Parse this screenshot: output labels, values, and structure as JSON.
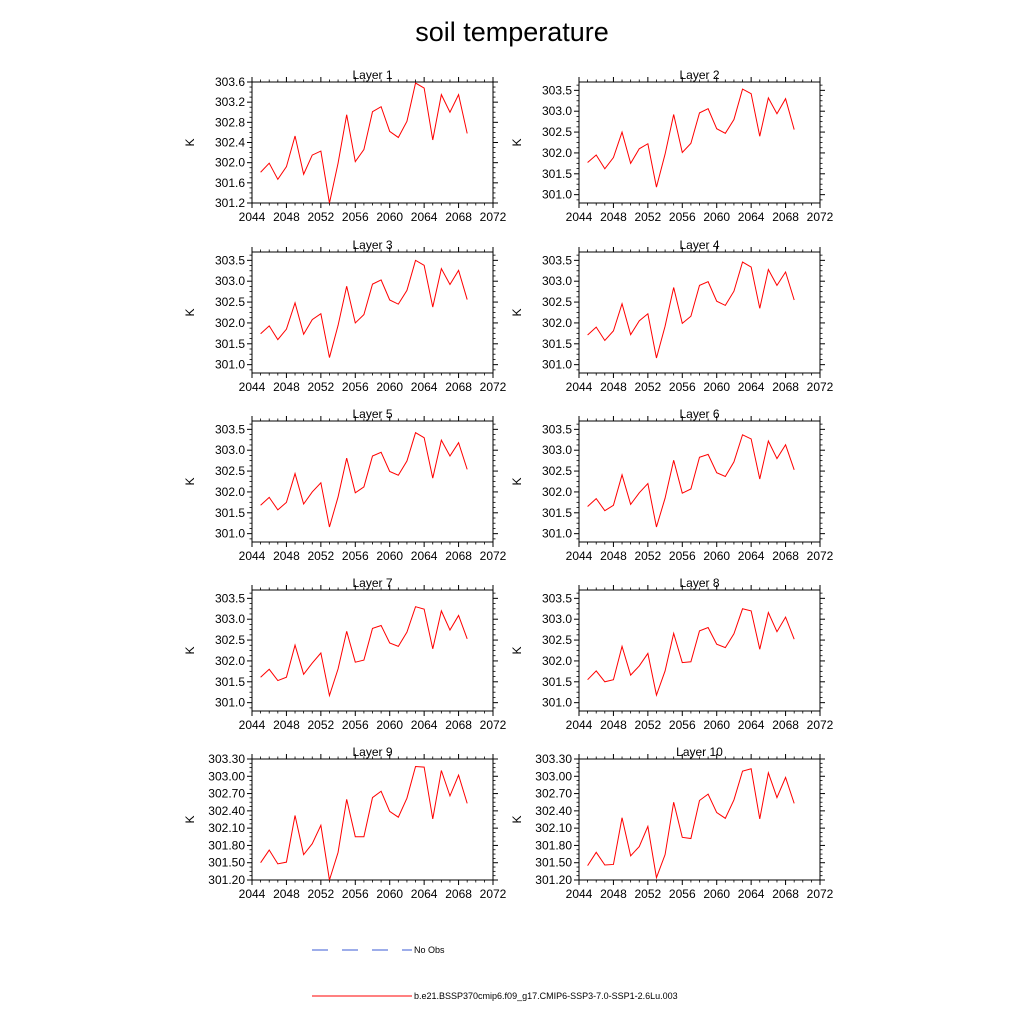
{
  "figure": {
    "title": "soil temperature"
  },
  "legend": {
    "items": [
      {
        "label": "No Obs",
        "color": "#3b5bd6",
        "style": "dashed"
      },
      {
        "label": "b.e21.BSSP370cmip6.f09_g17.CMIP6-SSP3-7.0-SSP1-2.6Lu.003",
        "color": "#ff0000",
        "style": "solid"
      }
    ]
  },
  "colors": {
    "series": "#ff0000",
    "axis": "#000000",
    "no_obs": "#3b5bd6"
  },
  "chart_data": [
    {
      "type": "line",
      "title": "Layer 1",
      "ylabel": "K",
      "xlim": [
        2044,
        2072
      ],
      "ylim": [
        301.2,
        303.6
      ],
      "xticks": [
        "2044",
        "2048",
        "2052",
        "2056",
        "2060",
        "2064",
        "2068",
        "2072"
      ],
      "yticks": [
        "301.2",
        "301.6",
        "302.0",
        "302.4",
        "302.8",
        "303.2",
        "303.6"
      ],
      "x": [
        2045,
        2046,
        2047,
        2048,
        2049,
        2050,
        2051,
        2052,
        2053,
        2054,
        2055,
        2056,
        2057,
        2058,
        2059,
        2060,
        2061,
        2062,
        2063,
        2064,
        2065,
        2066,
        2067,
        2068,
        2069
      ],
      "series": [
        {
          "values": [
            301.81,
            301.99,
            301.67,
            301.92,
            302.53,
            301.77,
            302.15,
            302.23,
            301.2,
            301.99,
            302.95,
            302.02,
            302.26,
            303.01,
            303.11,
            302.62,
            302.5,
            302.82,
            303.58,
            303.48,
            302.45,
            303.35,
            303.0,
            303.35,
            302.58
          ]
        }
      ]
    },
    {
      "type": "line",
      "title": "Layer 2",
      "ylabel": "K",
      "xlim": [
        2044,
        2072
      ],
      "ylim": [
        300.8,
        303.7
      ],
      "xticks": [
        "2044",
        "2048",
        "2052",
        "2056",
        "2060",
        "2064",
        "2068",
        "2072"
      ],
      "yticks": [
        "301.0",
        "301.5",
        "302.0",
        "302.5",
        "303.0",
        "303.5"
      ],
      "x": [
        2045,
        2046,
        2047,
        2048,
        2049,
        2050,
        2051,
        2052,
        2053,
        2054,
        2055,
        2056,
        2057,
        2058,
        2059,
        2060,
        2061,
        2062,
        2063,
        2064,
        2065,
        2066,
        2067,
        2068,
        2069
      ],
      "series": [
        {
          "values": [
            301.77,
            301.95,
            301.62,
            301.89,
            302.5,
            301.75,
            302.1,
            302.22,
            301.18,
            301.97,
            302.92,
            302.01,
            302.23,
            302.96,
            303.06,
            302.58,
            302.47,
            302.8,
            303.53,
            303.42,
            302.4,
            303.32,
            302.94,
            303.3,
            302.56
          ]
        }
      ]
    },
    {
      "type": "line",
      "title": "Layer 3",
      "ylabel": "K",
      "xlim": [
        2044,
        2072
      ],
      "ylim": [
        300.8,
        303.7
      ],
      "xticks": [
        "2044",
        "2048",
        "2052",
        "2056",
        "2060",
        "2064",
        "2068",
        "2072"
      ],
      "yticks": [
        "301.0",
        "301.5",
        "302.0",
        "302.5",
        "303.0",
        "303.5"
      ],
      "x": [
        2045,
        2046,
        2047,
        2048,
        2049,
        2050,
        2051,
        2052,
        2053,
        2054,
        2055,
        2056,
        2057,
        2058,
        2059,
        2060,
        2061,
        2062,
        2063,
        2064,
        2065,
        2066,
        2067,
        2068,
        2069
      ],
      "series": [
        {
          "values": [
            301.74,
            301.93,
            301.6,
            301.85,
            302.48,
            301.73,
            302.08,
            302.22,
            301.17,
            301.94,
            302.88,
            302.0,
            302.2,
            302.93,
            303.03,
            302.55,
            302.45,
            302.78,
            303.5,
            303.38,
            302.38,
            303.3,
            302.92,
            303.26,
            302.56
          ]
        }
      ]
    },
    {
      "type": "line",
      "title": "Layer 4",
      "ylabel": "K",
      "xlim": [
        2044,
        2072
      ],
      "ylim": [
        300.8,
        303.7
      ],
      "xticks": [
        "2044",
        "2048",
        "2052",
        "2056",
        "2060",
        "2064",
        "2068",
        "2072"
      ],
      "yticks": [
        "301.0",
        "301.5",
        "302.0",
        "302.5",
        "303.0",
        "303.5"
      ],
      "x": [
        2045,
        2046,
        2047,
        2048,
        2049,
        2050,
        2051,
        2052,
        2053,
        2054,
        2055,
        2056,
        2057,
        2058,
        2059,
        2060,
        2061,
        2062,
        2063,
        2064,
        2065,
        2066,
        2067,
        2068,
        2069
      ],
      "series": [
        {
          "values": [
            301.71,
            301.9,
            301.58,
            301.81,
            302.46,
            301.72,
            302.05,
            302.22,
            301.16,
            301.92,
            302.85,
            301.99,
            302.16,
            302.9,
            302.99,
            302.52,
            302.42,
            302.76,
            303.46,
            303.34,
            302.35,
            303.28,
            302.9,
            303.22,
            302.55
          ]
        }
      ]
    },
    {
      "type": "line",
      "title": "Layer 5",
      "ylabel": "K",
      "xlim": [
        2044,
        2072
      ],
      "ylim": [
        300.8,
        303.7
      ],
      "xticks": [
        "2044",
        "2048",
        "2052",
        "2056",
        "2060",
        "2064",
        "2068",
        "2072"
      ],
      "yticks": [
        "301.0",
        "301.5",
        "302.0",
        "302.5",
        "303.0",
        "303.5"
      ],
      "x": [
        2045,
        2046,
        2047,
        2048,
        2049,
        2050,
        2051,
        2052,
        2053,
        2054,
        2055,
        2056,
        2057,
        2058,
        2059,
        2060,
        2061,
        2062,
        2063,
        2064,
        2065,
        2066,
        2067,
        2068,
        2069
      ],
      "series": [
        {
          "values": [
            301.68,
            301.87,
            301.57,
            301.75,
            302.44,
            301.71,
            302.0,
            302.22,
            301.16,
            301.88,
            302.81,
            301.98,
            302.12,
            302.86,
            302.95,
            302.49,
            302.4,
            302.74,
            303.42,
            303.3,
            302.33,
            303.24,
            302.86,
            303.18,
            302.54
          ]
        }
      ]
    },
    {
      "type": "line",
      "title": "Layer 6",
      "ylabel": "K",
      "xlim": [
        2044,
        2072
      ],
      "ylim": [
        300.8,
        303.7
      ],
      "xticks": [
        "2044",
        "2048",
        "2052",
        "2056",
        "2060",
        "2064",
        "2068",
        "2072"
      ],
      "yticks": [
        "301.0",
        "301.5",
        "302.0",
        "302.5",
        "303.0",
        "303.5"
      ],
      "x": [
        2045,
        2046,
        2047,
        2048,
        2049,
        2050,
        2051,
        2052,
        2053,
        2054,
        2055,
        2056,
        2057,
        2058,
        2059,
        2060,
        2061,
        2062,
        2063,
        2064,
        2065,
        2066,
        2067,
        2068,
        2069
      ],
      "series": [
        {
          "values": [
            301.65,
            301.84,
            301.55,
            301.68,
            302.41,
            301.7,
            301.98,
            302.2,
            301.16,
            301.85,
            302.76,
            301.97,
            302.07,
            302.83,
            302.9,
            302.46,
            302.37,
            302.72,
            303.37,
            303.27,
            302.31,
            303.22,
            302.8,
            303.13,
            302.53
          ]
        }
      ]
    },
    {
      "type": "line",
      "title": "Layer 7",
      "ylabel": "K",
      "xlim": [
        2044,
        2072
      ],
      "ylim": [
        300.8,
        303.7
      ],
      "xticks": [
        "2044",
        "2048",
        "2052",
        "2056",
        "2060",
        "2064",
        "2068",
        "2072"
      ],
      "yticks": [
        "301.0",
        "301.5",
        "302.0",
        "302.5",
        "303.0",
        "303.5"
      ],
      "x": [
        2045,
        2046,
        2047,
        2048,
        2049,
        2050,
        2051,
        2052,
        2053,
        2054,
        2055,
        2056,
        2057,
        2058,
        2059,
        2060,
        2061,
        2062,
        2063,
        2064,
        2065,
        2066,
        2067,
        2068,
        2069
      ],
      "series": [
        {
          "values": [
            301.61,
            301.8,
            301.53,
            301.61,
            302.38,
            301.68,
            301.95,
            302.19,
            301.17,
            301.81,
            302.71,
            301.97,
            302.02,
            302.78,
            302.85,
            302.43,
            302.35,
            302.69,
            303.3,
            303.24,
            302.29,
            303.2,
            302.74,
            303.09,
            302.53
          ]
        }
      ]
    },
    {
      "type": "line",
      "title": "Layer 8",
      "ylabel": "K",
      "xlim": [
        2044,
        2072
      ],
      "ylim": [
        300.8,
        303.7
      ],
      "xticks": [
        "2044",
        "2048",
        "2052",
        "2056",
        "2060",
        "2064",
        "2068",
        "2072"
      ],
      "yticks": [
        "301.0",
        "301.5",
        "302.0",
        "302.5",
        "303.0",
        "303.5"
      ],
      "x": [
        2045,
        2046,
        2047,
        2048,
        2049,
        2050,
        2051,
        2052,
        2053,
        2054,
        2055,
        2056,
        2057,
        2058,
        2059,
        2060,
        2061,
        2062,
        2063,
        2064,
        2065,
        2066,
        2067,
        2068,
        2069
      ],
      "series": [
        {
          "values": [
            301.55,
            301.76,
            301.5,
            301.55,
            302.35,
            301.66,
            301.88,
            302.18,
            301.18,
            301.76,
            302.66,
            301.96,
            301.98,
            302.72,
            302.8,
            302.4,
            302.32,
            302.65,
            303.25,
            303.2,
            302.28,
            303.16,
            302.7,
            303.05,
            302.52
          ]
        }
      ]
    },
    {
      "type": "line",
      "title": "Layer 9",
      "ylabel": "K",
      "xlim": [
        2044,
        2072
      ],
      "ylim": [
        301.2,
        303.3
      ],
      "xticks": [
        "2044",
        "2048",
        "2052",
        "2056",
        "2060",
        "2064",
        "2068",
        "2072"
      ],
      "yticks": [
        "301.20",
        "301.50",
        "301.80",
        "302.10",
        "302.40",
        "302.70",
        "303.00",
        "303.30"
      ],
      "x": [
        2045,
        2046,
        2047,
        2048,
        2049,
        2050,
        2051,
        2052,
        2053,
        2054,
        2055,
        2056,
        2057,
        2058,
        2059,
        2060,
        2061,
        2062,
        2063,
        2064,
        2065,
        2066,
        2067,
        2068,
        2069
      ],
      "series": [
        {
          "values": [
            301.5,
            301.72,
            301.48,
            301.51,
            302.32,
            301.64,
            301.83,
            302.15,
            301.2,
            301.68,
            302.6,
            301.95,
            301.95,
            302.63,
            302.74,
            302.39,
            302.29,
            302.62,
            303.17,
            303.16,
            302.26,
            303.1,
            302.66,
            303.02,
            302.53
          ]
        }
      ]
    },
    {
      "type": "line",
      "title": "Layer 10",
      "ylabel": "K",
      "xlim": [
        2044,
        2072
      ],
      "ylim": [
        301.2,
        303.3
      ],
      "xticks": [
        "2044",
        "2048",
        "2052",
        "2056",
        "2060",
        "2064",
        "2068",
        "2072"
      ],
      "yticks": [
        "301.20",
        "301.50",
        "301.80",
        "302.10",
        "302.40",
        "302.70",
        "303.00",
        "303.30"
      ],
      "x": [
        2045,
        2046,
        2047,
        2048,
        2049,
        2050,
        2051,
        2052,
        2053,
        2054,
        2055,
        2056,
        2057,
        2058,
        2059,
        2060,
        2061,
        2062,
        2063,
        2064,
        2065,
        2066,
        2067,
        2068,
        2069
      ],
      "series": [
        {
          "values": [
            301.45,
            301.68,
            301.46,
            301.47,
            302.28,
            301.62,
            301.78,
            302.13,
            301.24,
            301.64,
            302.55,
            301.94,
            301.92,
            302.58,
            302.69,
            302.37,
            302.27,
            302.59,
            303.09,
            303.13,
            302.26,
            303.06,
            302.63,
            302.98,
            302.53
          ]
        }
      ]
    }
  ]
}
